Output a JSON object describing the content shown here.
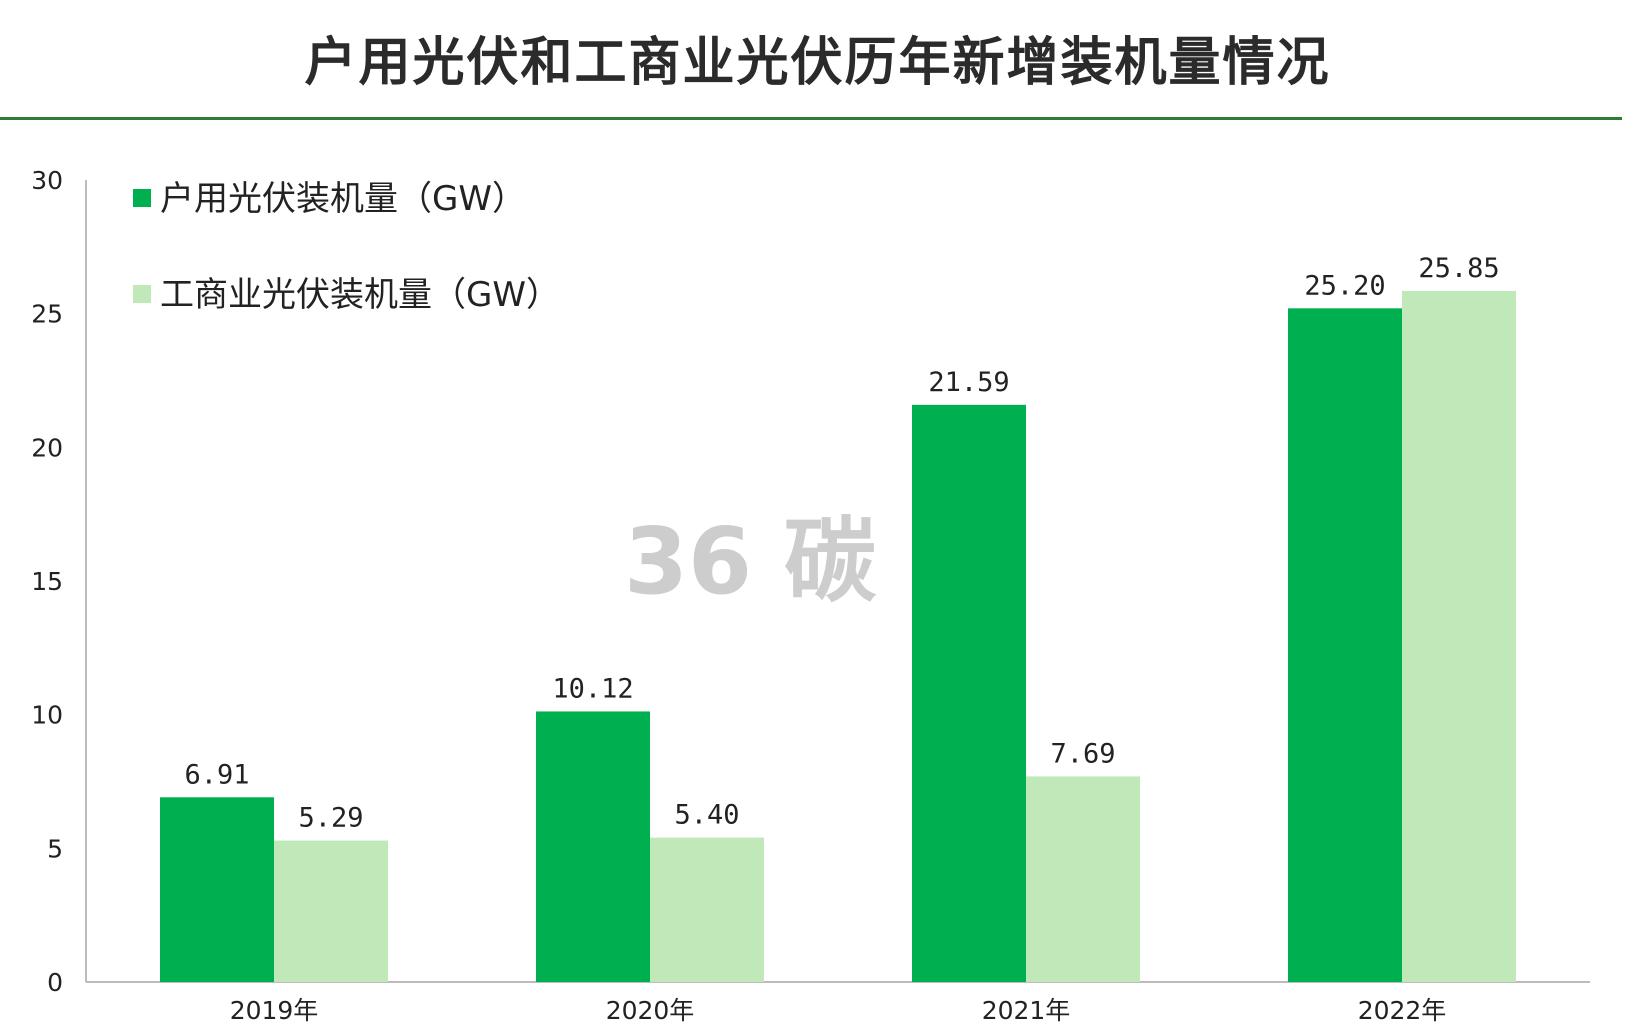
{
  "chart_data": {
    "type": "bar",
    "title": "户用光伏和工商业光伏历年新增装机量情况",
    "categories": [
      "2019年",
      "2020年",
      "2021年",
      "2022年"
    ],
    "series": [
      {
        "name": "户用光伏装机量（GW）",
        "values": [
          6.91,
          10.12,
          21.59,
          25.2
        ],
        "labels": [
          "6.91",
          "10.12",
          "21.59",
          "25.20"
        ],
        "color": "#00b050"
      },
      {
        "name": "工商业光伏装机量（GW）",
        "values": [
          5.29,
          5.4,
          7.69,
          25.85
        ],
        "labels": [
          "5.29",
          "5.40",
          "7.69",
          "25.85"
        ],
        "color": "#c0e8b8"
      }
    ],
    "ylim": [
      0,
      30
    ],
    "yticks": [
      0,
      5,
      10,
      15,
      20,
      25,
      30
    ],
    "xlabel": "",
    "ylabel": "",
    "grid": false,
    "legend_position": "top-left"
  },
  "watermark": "36 碳",
  "colors": {
    "title_rule": "#2e7d32",
    "axis": "#a6a6a6"
  }
}
